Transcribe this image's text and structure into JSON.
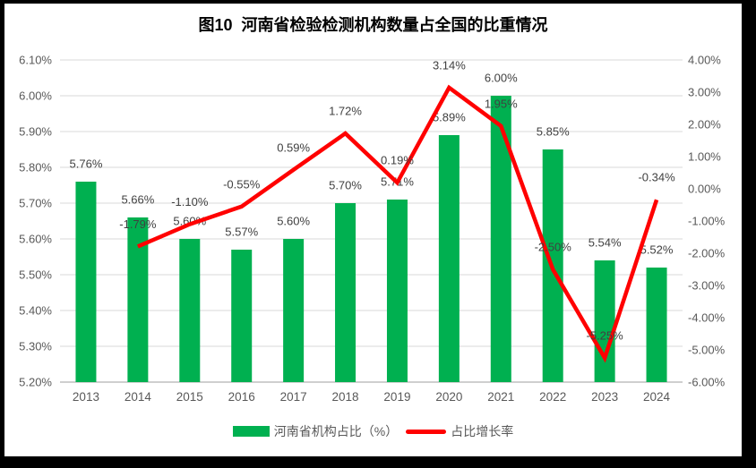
{
  "frame": {
    "border_color": "#000000",
    "chart_background": "#ffffff"
  },
  "chart_data": {
    "type": "bar+line",
    "title": "图10  河南省检验检测机构数量占全国的比重情况",
    "categories": [
      "2013",
      "2014",
      "2015",
      "2016",
      "2017",
      "2018",
      "2019",
      "2020",
      "2021",
      "2022",
      "2023",
      "2024"
    ],
    "series": [
      {
        "name": "河南省机构占比（%）",
        "type": "bar",
        "axis": "left",
        "color": "#00B050",
        "values": [
          5.76,
          5.66,
          5.6,
          5.57,
          5.6,
          5.7,
          5.71,
          5.89,
          6.0,
          5.85,
          5.54,
          5.52
        ],
        "labels": [
          "5.76%",
          "5.66%",
          "5.60%",
          "5.57%",
          "5.60%",
          "5.70%",
          "5.71%",
          "5.89%",
          "6.00%",
          "5.85%",
          "5.54%",
          "5.52%"
        ]
      },
      {
        "name": "占比增长率",
        "type": "line",
        "axis": "right",
        "color": "#FF0000",
        "values": [
          null,
          -1.79,
          -1.1,
          -0.55,
          0.59,
          1.72,
          0.19,
          3.14,
          1.95,
          -2.5,
          -5.25,
          -0.34
        ],
        "labels": [
          null,
          "-1.79%",
          "-1.10%",
          "-0.55%",
          "0.59%",
          "1.72%",
          "0.19%",
          "3.14%",
          "1.95%",
          "-2.50%",
          "-5.25%",
          "-0.34%"
        ]
      }
    ],
    "left_axis": {
      "min": 5.2,
      "max": 6.1,
      "ticks": [
        "5.20%",
        "5.30%",
        "5.40%",
        "5.50%",
        "5.60%",
        "5.70%",
        "5.80%",
        "5.90%",
        "6.00%",
        "6.10%"
      ]
    },
    "right_axis": {
      "min": -6,
      "max": 4,
      "ticks": [
        "-6.00%",
        "-5.00%",
        "-4.00%",
        "-3.00%",
        "-2.00%",
        "-1.00%",
        "0.00%",
        "1.00%",
        "2.00%",
        "3.00%",
        "4.00%"
      ]
    },
    "grid": true,
    "legend_position": "bottom",
    "styles": {
      "grid_color": "#D9D9D9",
      "axis_line_color": "#BFBFBF",
      "tick_label_color": "#595959",
      "data_label_color": "#404040",
      "title_color": "#000000"
    }
  }
}
